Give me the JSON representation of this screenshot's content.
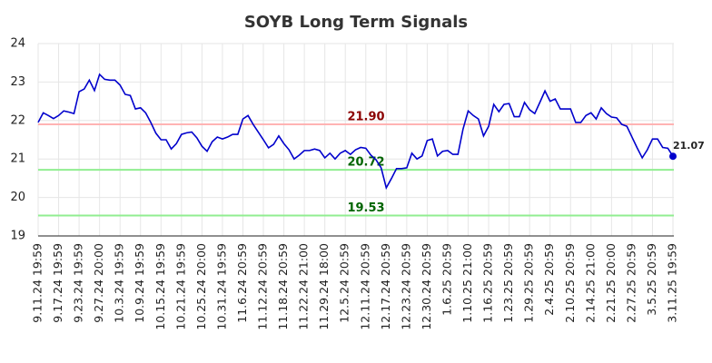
{
  "chart_data": {
    "type": "line",
    "title": "SOYB Long Term Signals",
    "categories": [
      "9.11.24 19:59",
      null,
      null,
      null,
      "9.17.24 19:59",
      null,
      null,
      null,
      "9.23.24 19:59",
      null,
      null,
      null,
      "9.27.24 20:00",
      null,
      null,
      null,
      "10.3.24 19:59",
      null,
      null,
      null,
      "10.9.24 19:59",
      null,
      null,
      null,
      "10.15.24 19:59",
      null,
      null,
      null,
      "10.21.24 19:59",
      null,
      null,
      null,
      "10.25.24 20:00",
      null,
      null,
      null,
      "10.31.24 19:59",
      null,
      null,
      null,
      "11.6.24 20:59",
      null,
      null,
      null,
      "11.12.24 20:59",
      null,
      null,
      null,
      "11.18.24 20:59",
      null,
      null,
      null,
      "11.22.24 21:00",
      null,
      null,
      null,
      "11.29.24 18:00",
      null,
      null,
      null,
      "12.5.24 20:59",
      null,
      null,
      null,
      "12.11.24 20:59",
      null,
      null,
      null,
      "12.17.24 20:59",
      null,
      null,
      null,
      "12.23.24 20:59",
      null,
      null,
      null,
      "12.30.24 20:59",
      null,
      null,
      null,
      "1.6.25 20:59",
      null,
      null,
      null,
      "1.10.25 21:00",
      null,
      null,
      null,
      "1.16.25 20:59",
      null,
      null,
      null,
      "1.23.25 20:59",
      null,
      null,
      null,
      "1.29.25 20:59",
      null,
      null,
      null,
      "2.4.25 20:59",
      null,
      null,
      null,
      "2.10.25 20:59",
      null,
      null,
      null,
      "2.14.25 21:00",
      null,
      null,
      null,
      "2.21.25 20:00",
      null,
      null,
      null,
      "2.27.25 20:59",
      null,
      null,
      null,
      "3.5.25 20:59",
      null,
      null,
      null,
      "3.11.25 19:59"
    ],
    "values": [
      21.95,
      22.2,
      22.13,
      22.05,
      22.13,
      22.25,
      22.22,
      22.18,
      22.75,
      22.82,
      23.05,
      22.78,
      23.2,
      23.07,
      23.05,
      23.05,
      22.92,
      22.68,
      22.65,
      22.3,
      22.33,
      22.2,
      21.95,
      21.67,
      21.5,
      21.5,
      21.26,
      21.4,
      21.64,
      21.68,
      21.7,
      21.55,
      21.33,
      21.2,
      21.45,
      21.57,
      21.52,
      21.57,
      21.64,
      21.64,
      22.04,
      22.13,
      21.9,
      21.7,
      21.5,
      21.29,
      21.38,
      21.6,
      21.4,
      21.24,
      21.0,
      21.1,
      21.22,
      21.22,
      21.26,
      21.22,
      21.03,
      21.15,
      21.0,
      21.15,
      21.22,
      21.12,
      21.24,
      21.3,
      21.28,
      21.1,
      20.98,
      20.77,
      20.25,
      20.49,
      20.75,
      20.75,
      20.77,
      21.15,
      21.0,
      21.08,
      21.48,
      21.52,
      21.08,
      21.2,
      21.22,
      21.12,
      21.12,
      21.78,
      22.25,
      22.13,
      22.04,
      21.6,
      21.85,
      22.42,
      22.23,
      22.42,
      22.44,
      22.1,
      22.1,
      22.47,
      22.28,
      22.18,
      22.47,
      22.77,
      22.5,
      22.56,
      22.3,
      22.3,
      22.3,
      21.95,
      21.95,
      22.13,
      22.2,
      22.04,
      22.33,
      22.18,
      22.09,
      22.07,
      21.9,
      21.85,
      21.57,
      21.29,
      21.03,
      21.24,
      21.52,
      21.52,
      21.3,
      21.28,
      21.07
    ],
    "color": "#0000cc",
    "ylim": [
      19,
      24
    ],
    "yticks": [
      19,
      20,
      21,
      22,
      23,
      24
    ],
    "grid": true,
    "hlines": [
      {
        "value": 21.9,
        "label": "21.90",
        "color": "#ffb3b3",
        "label_color": "#8b0000"
      },
      {
        "value": 20.72,
        "label": "20.72",
        "color": "#90ee90",
        "label_color": "#006400"
      },
      {
        "value": 19.53,
        "label": "19.53",
        "color": "#90ee90",
        "label_color": "#006400"
      }
    ]
  }
}
